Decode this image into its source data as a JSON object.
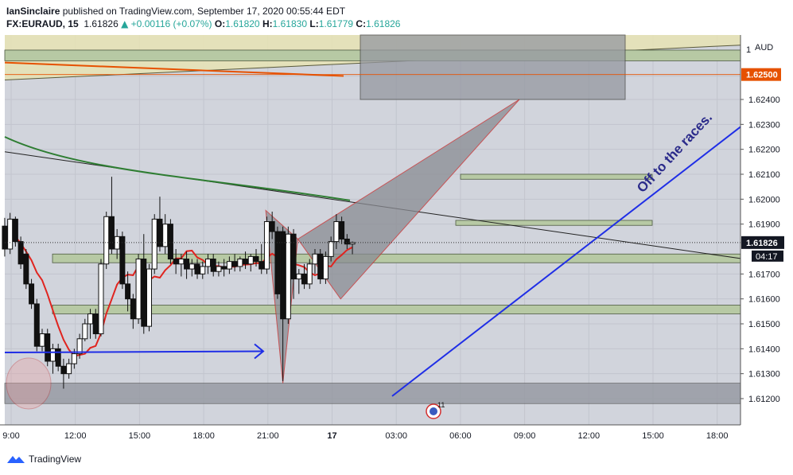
{
  "header": {
    "publisher": "IanSinclaire",
    "published_text": "published on TradingView.com, September 17, 2020 00:55:44 EDT",
    "symbol": "FX:EURAUD, 15",
    "last": "1.61826",
    "change": "+0.00116 (+0.07%)",
    "o_label": "O:",
    "o_value": "1.61820",
    "h_label": "H:",
    "h_value": "1.61830",
    "l_label": "L:",
    "l_value": "1.61779",
    "c_label": "C:",
    "c_value": "1.61826"
  },
  "footer": {
    "brand": "TradingView"
  },
  "colors": {
    "plot_bg": "#d1d4dc",
    "grid": "#c2c5ce",
    "support_zone": "#b7c9a4",
    "dark_zone": "#9598a1",
    "yellow_zone": "#e8e3b4",
    "trend_blue": "#1f2ee6",
    "ma_red": "#e0241f",
    "ma_green": "#2e7d32",
    "level_orange": "#e65100",
    "pattern_fill": "#8a8c93"
  },
  "chart_data": {
    "type": "candlestick",
    "currency_label": "AUD",
    "price_axis_top_label": "1",
    "y_ticks": [
      "1.62400",
      "1.62300",
      "1.62200",
      "1.62100",
      "1.62000",
      "1.61900",
      "1.61700",
      "1.61600",
      "1.61500",
      "1.61400",
      "1.61300",
      "1.61200"
    ],
    "ylim": [
      1.6116,
      1.6251
    ],
    "x_ticks": [
      "9:00",
      "12:00",
      "15:00",
      "18:00",
      "21:00",
      "17",
      "03:00",
      "06:00",
      "09:00",
      "12:00",
      "15:00",
      "18:00"
    ],
    "current_price_label": "1.61826",
    "countdown_label": "04:17",
    "level_label": "1.62500",
    "annotation_text": "Off to the races.",
    "event_badge": "11",
    "candles": [
      {
        "t": 8.7,
        "o": 1.61892,
        "h": 1.61925,
        "l": 1.6177,
        "c": 1.618
      },
      {
        "t": 8.95,
        "o": 1.618,
        "h": 1.61945,
        "l": 1.6178,
        "c": 1.6192
      },
      {
        "t": 9.2,
        "o": 1.6192,
        "h": 1.6193,
        "l": 1.6181,
        "c": 1.6183
      },
      {
        "t": 9.45,
        "o": 1.6183,
        "h": 1.6185,
        "l": 1.6172,
        "c": 1.6174
      },
      {
        "t": 9.7,
        "o": 1.6178,
        "h": 1.618,
        "l": 1.6164,
        "c": 1.6166
      },
      {
        "t": 9.95,
        "o": 1.6166,
        "h": 1.6168,
        "l": 1.6156,
        "c": 1.6158
      },
      {
        "t": 10.2,
        "o": 1.6158,
        "h": 1.616,
        "l": 1.6139,
        "c": 1.6141
      },
      {
        "t": 10.45,
        "o": 1.6141,
        "h": 1.6148,
        "l": 1.6139,
        "c": 1.6146
      },
      {
        "t": 10.7,
        "o": 1.6146,
        "h": 1.6148,
        "l": 1.6133,
        "c": 1.6135
      },
      {
        "t": 10.95,
        "o": 1.6135,
        "h": 1.6142,
        "l": 1.613,
        "c": 1.614
      },
      {
        "t": 11.2,
        "o": 1.614,
        "h": 1.6142,
        "l": 1.6131,
        "c": 1.6133
      },
      {
        "t": 11.45,
        "o": 1.6133,
        "h": 1.6136,
        "l": 1.6124,
        "c": 1.613
      },
      {
        "t": 11.7,
        "o": 1.613,
        "h": 1.6136,
        "l": 1.6128,
        "c": 1.6134
      },
      {
        "t": 11.95,
        "o": 1.6134,
        "h": 1.614,
        "l": 1.6132,
        "c": 1.6138
      },
      {
        "t": 12.2,
        "o": 1.6138,
        "h": 1.6146,
        "l": 1.6136,
        "c": 1.6144
      },
      {
        "t": 12.45,
        "o": 1.6144,
        "h": 1.6152,
        "l": 1.6143,
        "c": 1.615
      },
      {
        "t": 12.7,
        "o": 1.615,
        "h": 1.6156,
        "l": 1.6144,
        "c": 1.6154
      },
      {
        "t": 12.95,
        "o": 1.6154,
        "h": 1.6156,
        "l": 1.6144,
        "c": 1.6146
      },
      {
        "t": 13.2,
        "o": 1.6146,
        "h": 1.6176,
        "l": 1.6145,
        "c": 1.6174
      },
      {
        "t": 13.45,
        "o": 1.6174,
        "h": 1.6195,
        "l": 1.6172,
        "c": 1.6193
      },
      {
        "t": 13.7,
        "o": 1.6193,
        "h": 1.6209,
        "l": 1.6178,
        "c": 1.618
      },
      {
        "t": 13.95,
        "o": 1.618,
        "h": 1.6188,
        "l": 1.6176,
        "c": 1.6185
      },
      {
        "t": 14.2,
        "o": 1.6185,
        "h": 1.6187,
        "l": 1.6164,
        "c": 1.6166
      },
      {
        "t": 14.45,
        "o": 1.6166,
        "h": 1.6171,
        "l": 1.6155,
        "c": 1.616
      },
      {
        "t": 14.7,
        "o": 1.616,
        "h": 1.6162,
        "l": 1.6148,
        "c": 1.6152
      },
      {
        "t": 14.95,
        "o": 1.6152,
        "h": 1.6178,
        "l": 1.615,
        "c": 1.6176
      },
      {
        "t": 15.2,
        "o": 1.6176,
        "h": 1.6186,
        "l": 1.6146,
        "c": 1.6149
      },
      {
        "t": 15.45,
        "o": 1.6149,
        "h": 1.6174,
        "l": 1.6147,
        "c": 1.6172
      },
      {
        "t": 15.7,
        "o": 1.6172,
        "h": 1.6194,
        "l": 1.617,
        "c": 1.6192
      },
      {
        "t": 15.95,
        "o": 1.6192,
        "h": 1.6201,
        "l": 1.6179,
        "c": 1.6181
      },
      {
        "t": 16.2,
        "o": 1.6181,
        "h": 1.6194,
        "l": 1.6178,
        "c": 1.619
      },
      {
        "t": 16.45,
        "o": 1.619,
        "h": 1.6192,
        "l": 1.6174,
        "c": 1.6176
      },
      {
        "t": 16.7,
        "o": 1.6176,
        "h": 1.618,
        "l": 1.617,
        "c": 1.6174
      },
      {
        "t": 16.95,
        "o": 1.6174,
        "h": 1.6178,
        "l": 1.6169,
        "c": 1.6176
      },
      {
        "t": 17.2,
        "o": 1.6176,
        "h": 1.6179,
        "l": 1.6168,
        "c": 1.6172
      },
      {
        "t": 17.45,
        "o": 1.6172,
        "h": 1.6176,
        "l": 1.6169,
        "c": 1.6174
      },
      {
        "t": 17.7,
        "o": 1.6174,
        "h": 1.6176,
        "l": 1.6168,
        "c": 1.617
      },
      {
        "t": 17.95,
        "o": 1.617,
        "h": 1.6175,
        "l": 1.6168,
        "c": 1.6173
      },
      {
        "t": 18.2,
        "o": 1.6173,
        "h": 1.6178,
        "l": 1.617,
        "c": 1.6176
      },
      {
        "t": 18.45,
        "o": 1.6176,
        "h": 1.6178,
        "l": 1.6169,
        "c": 1.6171
      },
      {
        "t": 18.7,
        "o": 1.6171,
        "h": 1.6175,
        "l": 1.6169,
        "c": 1.6173
      },
      {
        "t": 18.95,
        "o": 1.6173,
        "h": 1.6176,
        "l": 1.6169,
        "c": 1.6172
      },
      {
        "t": 19.2,
        "o": 1.6172,
        "h": 1.6177,
        "l": 1.617,
        "c": 1.6175
      },
      {
        "t": 19.45,
        "o": 1.6175,
        "h": 1.6178,
        "l": 1.6171,
        "c": 1.6173
      },
      {
        "t": 19.7,
        "o": 1.6173,
        "h": 1.6177,
        "l": 1.6171,
        "c": 1.6176
      },
      {
        "t": 19.95,
        "o": 1.6176,
        "h": 1.6179,
        "l": 1.6172,
        "c": 1.6174
      },
      {
        "t": 20.2,
        "o": 1.6174,
        "h": 1.6178,
        "l": 1.6171,
        "c": 1.6177
      },
      {
        "t": 20.45,
        "o": 1.6177,
        "h": 1.618,
        "l": 1.6173,
        "c": 1.6175
      },
      {
        "t": 20.7,
        "o": 1.6175,
        "h": 1.6182,
        "l": 1.617,
        "c": 1.6172
      },
      {
        "t": 20.95,
        "o": 1.6172,
        "h": 1.6193,
        "l": 1.617,
        "c": 1.6191
      },
      {
        "t": 21.2,
        "o": 1.6191,
        "h": 1.6195,
        "l": 1.6184,
        "c": 1.6187
      },
      {
        "t": 21.45,
        "o": 1.6187,
        "h": 1.6189,
        "l": 1.616,
        "c": 1.6162
      },
      {
        "t": 21.7,
        "o": 1.6187,
        "h": 1.6189,
        "l": 1.6127,
        "c": 1.6152
      },
      {
        "t": 21.95,
        "o": 1.6152,
        "h": 1.6189,
        "l": 1.615,
        "c": 1.6186
      },
      {
        "t": 22.2,
        "o": 1.6186,
        "h": 1.6188,
        "l": 1.616,
        "c": 1.6168
      },
      {
        "t": 22.45,
        "o": 1.6168,
        "h": 1.6172,
        "l": 1.6162,
        "c": 1.617
      },
      {
        "t": 22.7,
        "o": 1.617,
        "h": 1.6174,
        "l": 1.6164,
        "c": 1.6166
      },
      {
        "t": 22.95,
        "o": 1.6166,
        "h": 1.6176,
        "l": 1.6164,
        "c": 1.6174
      },
      {
        "t": 23.2,
        "o": 1.6174,
        "h": 1.618,
        "l": 1.617,
        "c": 1.6178
      },
      {
        "t": 23.45,
        "o": 1.6178,
        "h": 1.618,
        "l": 1.6166,
        "c": 1.6168
      },
      {
        "t": 23.7,
        "o": 1.6168,
        "h": 1.6179,
        "l": 1.6166,
        "c": 1.6177
      },
      {
        "t": 23.95,
        "o": 1.6177,
        "h": 1.6185,
        "l": 1.6175,
        "c": 1.6183
      },
      {
        "t": 24.2,
        "o": 1.6183,
        "h": 1.6194,
        "l": 1.618,
        "c": 1.6191
      },
      {
        "t": 24.45,
        "o": 1.6191,
        "h": 1.6193,
        "l": 1.6182,
        "c": 1.6184
      },
      {
        "t": 24.7,
        "o": 1.6184,
        "h": 1.6186,
        "l": 1.618,
        "c": 1.6182
      },
      {
        "t": 24.95,
        "o": 1.6182,
        "h": 1.6183,
        "l": 1.61779,
        "c": 1.61826
      }
    ]
  }
}
